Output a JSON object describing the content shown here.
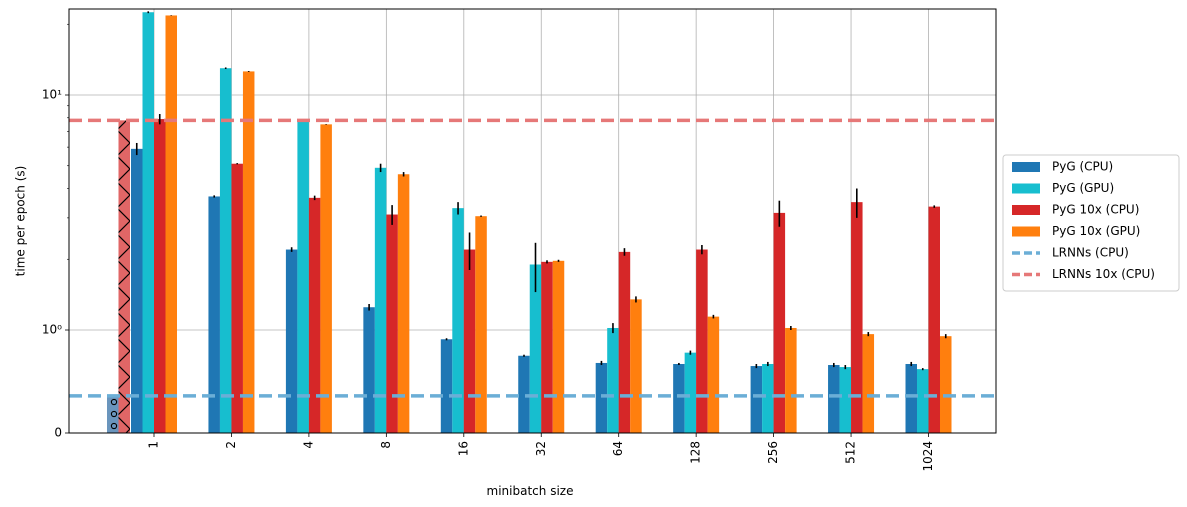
{
  "chart_data": {
    "type": "bar",
    "xlabel": "minibatch size",
    "ylabel": "time per epoch (s)",
    "yscale": "symlog",
    "ylim": [
      0,
      23
    ],
    "y_ticks": [
      {
        "value": 0,
        "label": "0"
      },
      {
        "value": 1,
        "label": "10⁰"
      },
      {
        "value": 10,
        "label": "10¹"
      }
    ],
    "grid": true,
    "legend_position": "right",
    "categories": [
      "1",
      "2",
      "4",
      "8",
      "16",
      "32",
      "64",
      "128",
      "256",
      "512",
      "1024"
    ],
    "series": [
      {
        "name": "PyG (CPU)",
        "color": "#1f77b4",
        "values": [
          5.9,
          3.7,
          2.2,
          1.25,
          0.91,
          0.75,
          0.68,
          0.67,
          0.65,
          0.66,
          0.67
        ],
        "errors": [
          0.35,
          0.04,
          0.05,
          0.04,
          0.01,
          0.01,
          0.02,
          0.01,
          0.02,
          0.02,
          0.02
        ]
      },
      {
        "name": "PyG (GPU)",
        "color": "#17becf",
        "values": [
          22.5,
          13.0,
          7.8,
          4.9,
          3.3,
          1.9,
          1.02,
          0.78,
          0.67,
          0.64,
          0.62
        ],
        "errors": [
          0.2,
          0.1,
          0.05,
          0.2,
          0.2,
          0.45,
          0.05,
          0.02,
          0.02,
          0.02,
          0.01
        ]
      },
      {
        "name": "PyG 10x (CPU)",
        "color": "#d62728",
        "values": [
          7.9,
          5.1,
          3.65,
          3.1,
          2.2,
          1.95,
          2.15,
          2.2,
          3.15,
          3.5,
          3.35
        ],
        "errors": [
          0.4,
          0.03,
          0.08,
          0.3,
          0.4,
          0.03,
          0.08,
          0.1,
          0.4,
          0.5,
          0.04
        ]
      },
      {
        "name": "PyG 10x (GPU)",
        "color": "#ff7f0e",
        "values": [
          21.8,
          12.6,
          7.5,
          4.6,
          3.05,
          1.97,
          1.35,
          1.14,
          1.02,
          0.96,
          0.94
        ],
        "errors": [
          0.05,
          0.05,
          0.02,
          0.1,
          0.02,
          0.02,
          0.04,
          0.02,
          0.02,
          0.02,
          0.02
        ]
      }
    ],
    "reference_lines": [
      {
        "name": "LRNNs (CPU)",
        "value": 0.36,
        "color": "#6baed6",
        "style": "dashed"
      },
      {
        "name": "LRNNs 10x (CPU)",
        "value": 7.8,
        "color": "#e67878",
        "style": "dashed"
      }
    ],
    "lrnn_bars": [
      {
        "name": "LRNNs (CPU)",
        "value": 0.36,
        "color": "#6a95bd",
        "hatch": "o"
      },
      {
        "name": "LRNNs 10x (CPU)",
        "value": 7.8,
        "color": "#e06666",
        "hatch": "x"
      }
    ]
  }
}
